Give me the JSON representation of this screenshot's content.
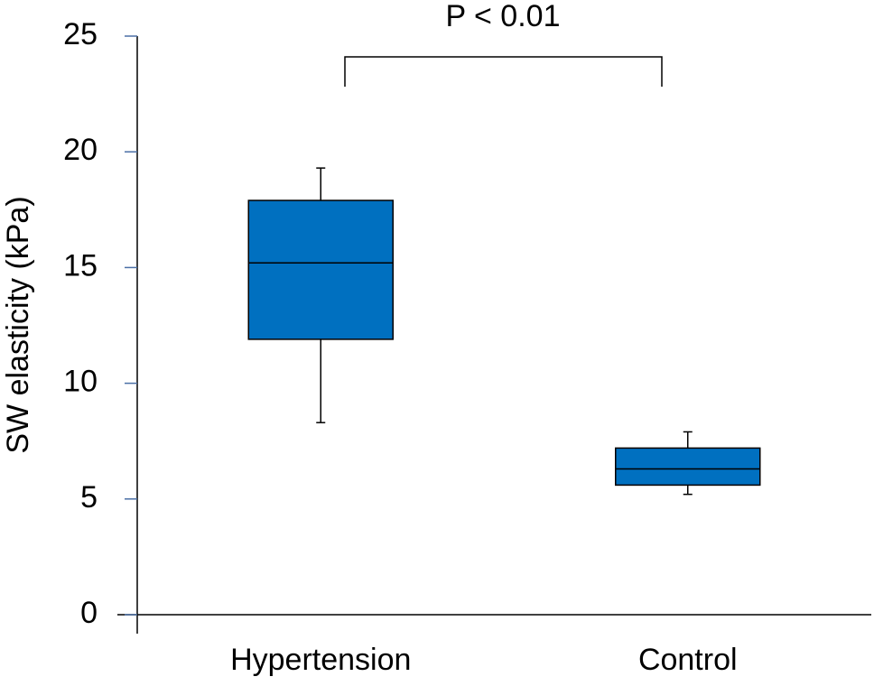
{
  "chart_data": {
    "type": "box",
    "ylabel": "SW elasticity (kPa)",
    "annotation": "P < 0.01",
    "categories": [
      "Hypertension",
      "Control"
    ],
    "boxes": [
      {
        "whislo": 8.3,
        "q1": 11.9,
        "med": 15.2,
        "q3": 17.9,
        "whishi": 19.3
      },
      {
        "whislo": 5.2,
        "q1": 5.6,
        "med": 6.3,
        "q3": 7.2,
        "whishi": 7.9
      }
    ],
    "color": "#0070c0",
    "ylim": [
      0,
      25
    ],
    "yticks": [
      0,
      5,
      10,
      15,
      20,
      25
    ],
    "grid": false
  }
}
